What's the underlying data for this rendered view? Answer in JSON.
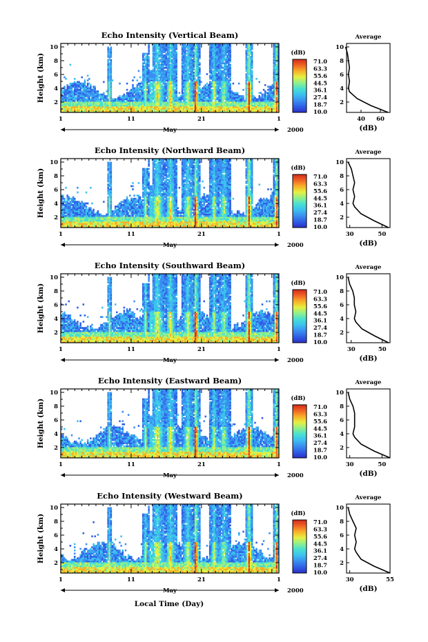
{
  "figure": {
    "xlabel_bottom": "Local Time (Day)",
    "month_label": "May",
    "year_label": "2000",
    "colorbar_unit": "(dB)",
    "average_title": "Average",
    "average_xlabel": "(dB)",
    "heatmap_ylabel": "Height (km)"
  },
  "chart_data": [
    {
      "type": "heatmap",
      "title": "Echo Intensity (Vertical Beam)",
      "ylabel": "Height (km)",
      "x_ticks": [
        "1",
        "11",
        "21",
        "1"
      ],
      "y_ticks": [
        "2",
        "4",
        "6",
        "8",
        "10"
      ],
      "ylim": [
        0.5,
        10.5
      ],
      "colorbar": {
        "unit": "(dB)",
        "ticks": [
          "71.0",
          "63.3",
          "55.6",
          "44.5",
          "36.1",
          "27.4",
          "18.7",
          "10.0"
        ]
      },
      "average_profile": {
        "title": "Average",
        "xlabel": "(dB)",
        "x_ticks": [
          "40",
          "60"
        ],
        "xlim": [
          25,
          70
        ],
        "heights": [
          0.5,
          1.5,
          2.5,
          3.5,
          4.0,
          5.0,
          6.0,
          7.0,
          8.0,
          9.0,
          10.0
        ],
        "values": [
          68,
          50,
          36,
          28,
          27,
          28,
          27,
          28,
          27,
          26,
          24
        ]
      }
    },
    {
      "type": "heatmap",
      "title": "Echo Intensity (Northward Beam)",
      "ylabel": "Height (km)",
      "x_ticks": [
        "1",
        "11",
        "21",
        "1"
      ],
      "y_ticks": [
        "2",
        "4",
        "6",
        "8",
        "10"
      ],
      "ylim": [
        0.5,
        10.5
      ],
      "colorbar": {
        "unit": "(dB)",
        "ticks": [
          "71.0",
          "63.3",
          "55.6",
          "44.5",
          "36.1",
          "27.4",
          "18.7",
          "10.0"
        ]
      },
      "average_profile": {
        "title": "Average",
        "xlabel": "(dB)",
        "x_ticks": [
          "30",
          "50"
        ],
        "xlim": [
          28,
          55
        ],
        "heights": [
          0.5,
          1.5,
          2.5,
          3.5,
          4.0,
          5.0,
          6.0,
          7.0,
          8.0,
          9.0,
          10.0
        ],
        "values": [
          54,
          45,
          37,
          33,
          32,
          33,
          32,
          33,
          32,
          31,
          29
        ]
      }
    },
    {
      "type": "heatmap",
      "title": "Echo Intensity (Southward Beam)",
      "ylabel": "Height (km)",
      "x_ticks": [
        "1",
        "11",
        "21",
        "1"
      ],
      "y_ticks": [
        "2",
        "4",
        "6",
        "8",
        "10"
      ],
      "ylim": [
        0.5,
        10.5
      ],
      "colorbar": {
        "unit": "(dB)",
        "ticks": [
          "71.0",
          "63.3",
          "55.6",
          "44.5",
          "36.1",
          "27.4",
          "18.7",
          "10.0"
        ]
      },
      "average_profile": {
        "title": "Average",
        "xlabel": "(dB)",
        "x_ticks": [
          "30",
          "50"
        ],
        "xlim": [
          27,
          55
        ],
        "heights": [
          0.5,
          1.5,
          2.5,
          3.5,
          4.0,
          5.0,
          6.0,
          7.0,
          8.0,
          9.0,
          10.0
        ],
        "values": [
          54,
          45,
          37,
          33,
          32,
          33,
          32,
          32,
          31,
          29,
          28
        ]
      }
    },
    {
      "type": "heatmap",
      "title": "Echo Intensity (Eastward Beam)",
      "ylabel": "Height (km)",
      "x_ticks": [
        "1",
        "11",
        "21",
        "1"
      ],
      "y_ticks": [
        "2",
        "4",
        "6",
        "8",
        "10"
      ],
      "ylim": [
        0.5,
        10.5
      ],
      "colorbar": {
        "unit": "(dB)",
        "ticks": [
          "71.0",
          "63.3",
          "55.6",
          "44.5",
          "36.1",
          "27.4",
          "18.7",
          "10.0"
        ]
      },
      "average_profile": {
        "title": "Average",
        "xlabel": "(dB)",
        "x_ticks": [
          "30",
          "50"
        ],
        "xlim": [
          28,
          55
        ],
        "heights": [
          0.5,
          1.5,
          2.5,
          3.5,
          4.0,
          5.0,
          6.0,
          7.0,
          8.0,
          9.0,
          10.0
        ],
        "values": [
          55,
          45,
          37,
          33,
          32,
          33,
          33,
          33,
          32,
          30,
          29
        ]
      }
    },
    {
      "type": "heatmap",
      "title": "Echo Intensity (Westward Beam)",
      "ylabel": "Height (km)",
      "x_ticks": [
        "1",
        "11",
        "21",
        "1"
      ],
      "y_ticks": [
        "2",
        "4",
        "6",
        "8",
        "10"
      ],
      "ylim": [
        0.5,
        10.5
      ],
      "colorbar": {
        "unit": "(dB)",
        "ticks": [
          "71.0",
          "63.3",
          "55.6",
          "44.5",
          "36.1",
          "27.4",
          "18.7",
          "10.0"
        ]
      },
      "average_profile": {
        "title": "Average",
        "xlabel": "(dB)",
        "x_ticks": [
          "30",
          "55"
        ],
        "xlim": [
          28,
          55
        ],
        "heights": [
          0.5,
          1.5,
          2.5,
          3.5,
          4.0,
          5.0,
          6.0,
          7.0,
          8.0,
          9.0,
          10.0
        ],
        "values": [
          55,
          45,
          37,
          34,
          33,
          34,
          33,
          34,
          32,
          30,
          29
        ]
      }
    }
  ],
  "colormap": [
    "#2b2fc8",
    "#2f5fe6",
    "#3a8ff0",
    "#3cc0ef",
    "#48e0d2",
    "#8ff08c",
    "#e6f040",
    "#f8b028",
    "#f06424",
    "#d42a1c"
  ]
}
